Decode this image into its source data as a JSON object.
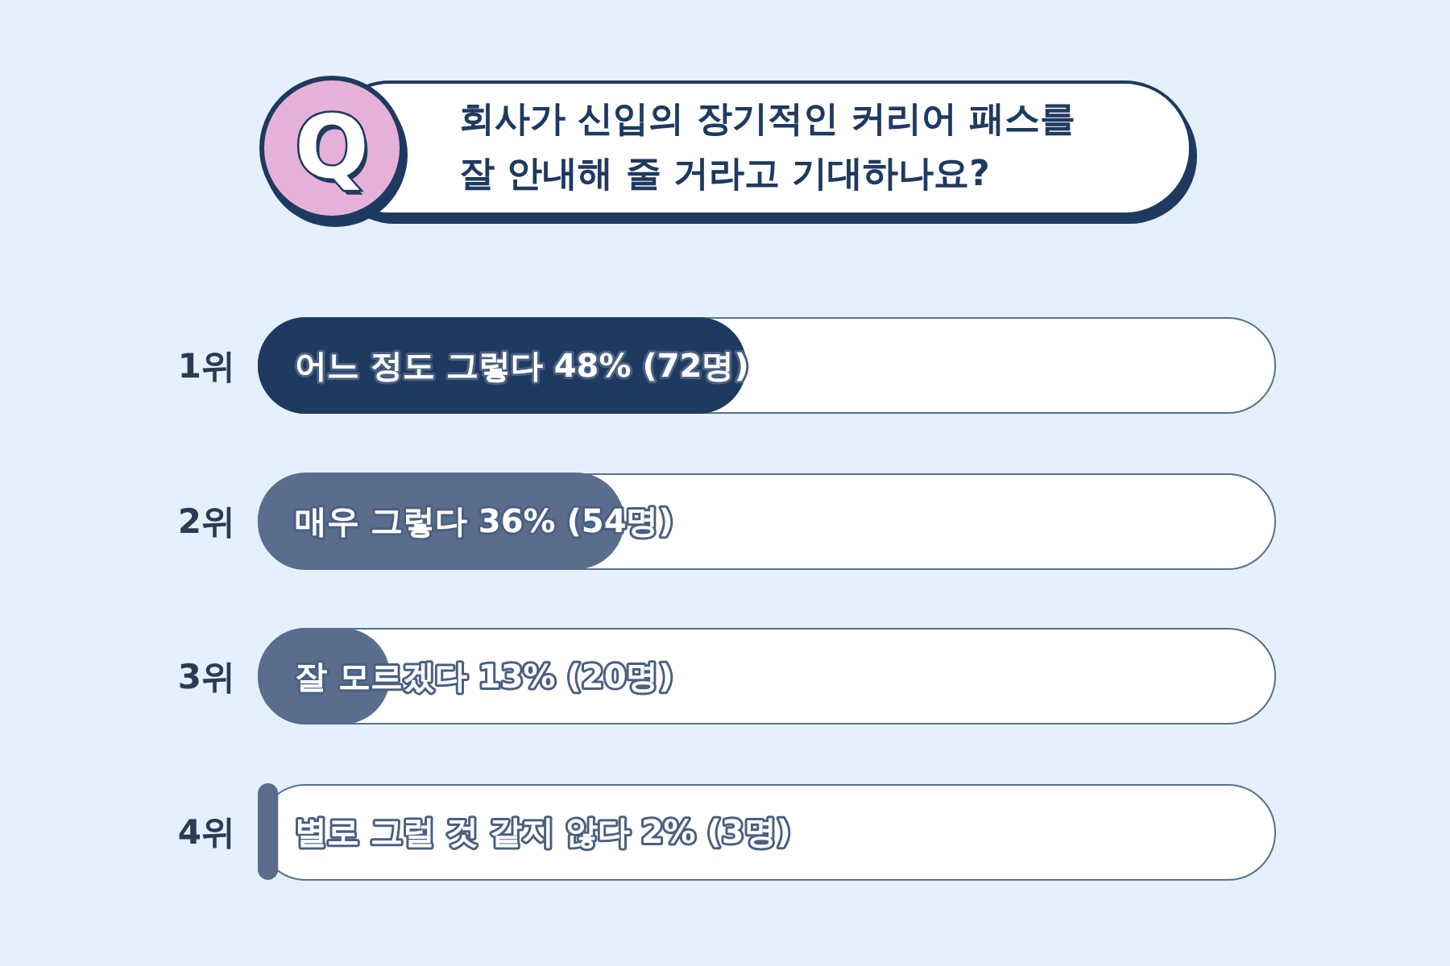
{
  "chart_data": {
    "type": "bar",
    "orientation": "horizontal",
    "title": "회사가 신입의 장기적인 커리어 패스를 잘 안내해 줄 거라고 기대하나요?",
    "categories": [
      "1위",
      "2위",
      "3위",
      "4위"
    ],
    "values": [
      48,
      36,
      13,
      2
    ],
    "colors": [
      "#1f3a60",
      "#5a6d8c",
      "#5a6d8c",
      "#5a6d8c"
    ],
    "value_labels": [
      "어느 정도 그렇다 48% (72명)",
      "매우 그렇다 36% (54명)",
      "잘 모르겠다 13% (20명)",
      "별로 그럴 것 같지 않다 2% (3명)"
    ],
    "xlim": [
      0,
      100
    ],
    "annotations": [
      "Q"
    ]
  }
}
